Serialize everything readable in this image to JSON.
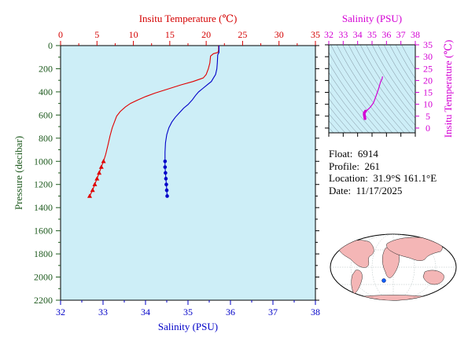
{
  "info": {
    "float_label": "Float:",
    "float_value": "6914",
    "profile_label": "Profile:",
    "profile_value": "261",
    "location_label": "Location:",
    "location_value": "31.9°S  161.1°E",
    "date_label": "Date:",
    "date_value": "11/17/2025"
  },
  "chart_data": [
    {
      "type": "line",
      "title": "",
      "top_axis_title": "Insitu Temperature (℃)",
      "bottom_axis_title": "Salinity (PSU)",
      "left_axis_title": "Pressure (decibar)",
      "temp_range": [
        0,
        35
      ],
      "temp_ticks": [
        "0",
        "5",
        "10",
        "15",
        "20",
        "25",
        "30",
        "35"
      ],
      "sal_range": [
        32,
        38
      ],
      "sal_ticks": [
        "32",
        "33",
        "34",
        "35",
        "36",
        "37",
        "38"
      ],
      "pressure_range": [
        0,
        2200
      ],
      "pressure_ticks": [
        "0",
        "200",
        "400",
        "600",
        "800",
        "1000",
        "1200",
        "1400",
        "1600",
        "1800",
        "2000",
        "2200"
      ],
      "colors": {
        "temperature": "#e00000",
        "salinity": "#0000c8",
        "background": "#cdeef7"
      },
      "series": [
        {
          "name": "Temperature",
          "axis": "temperature",
          "points": [
            [
              21.7,
              0
            ],
            [
              21.7,
              40
            ],
            [
              21.6,
              60
            ],
            [
              21.0,
              70
            ],
            [
              20.6,
              90
            ],
            [
              20.5,
              150
            ],
            [
              20.3,
              200
            ],
            [
              20.0,
              250
            ],
            [
              19.6,
              280
            ],
            [
              18.2,
              310
            ],
            [
              16.5,
              340
            ],
            [
              14.5,
              380
            ],
            [
              13.0,
              410
            ],
            [
              11.7,
              440
            ],
            [
              10.6,
              470
            ],
            [
              9.6,
              500
            ],
            [
              8.9,
              530
            ],
            [
              8.2,
              570
            ],
            [
              7.7,
              610
            ],
            [
              7.4,
              660
            ],
            [
              7.1,
              710
            ],
            [
              6.8,
              780
            ],
            [
              6.5,
              860
            ],
            [
              6.2,
              940
            ],
            [
              5.9,
              1000
            ],
            [
              5.6,
              1050
            ],
            [
              5.3,
              1100
            ],
            [
              5.0,
              1150
            ],
            [
              4.7,
              1200
            ],
            [
              4.4,
              1250
            ],
            [
              4.0,
              1300
            ]
          ],
          "markers": [
            [
              5.9,
              1000
            ],
            [
              5.6,
              1050
            ],
            [
              5.3,
              1100
            ],
            [
              5.0,
              1150
            ],
            [
              4.7,
              1200
            ],
            [
              4.4,
              1250
            ],
            [
              4.0,
              1300
            ]
          ]
        },
        {
          "name": "Salinity",
          "axis": "salinity",
          "points": [
            [
              35.73,
              0
            ],
            [
              35.73,
              60
            ],
            [
              35.7,
              80
            ],
            [
              35.69,
              150
            ],
            [
              35.68,
              200
            ],
            [
              35.65,
              250
            ],
            [
              35.6,
              280
            ],
            [
              35.55,
              310
            ],
            [
              35.45,
              340
            ],
            [
              35.35,
              370
            ],
            [
              35.25,
              400
            ],
            [
              35.18,
              430
            ],
            [
              35.1,
              470
            ],
            [
              35.0,
              510
            ],
            [
              34.9,
              540
            ],
            [
              34.8,
              580
            ],
            [
              34.7,
              620
            ],
            [
              34.62,
              660
            ],
            [
              34.55,
              710
            ],
            [
              34.5,
              770
            ],
            [
              34.47,
              840
            ],
            [
              34.46,
              920
            ],
            [
              34.46,
              1000
            ],
            [
              34.46,
              1050
            ],
            [
              34.47,
              1100
            ],
            [
              34.48,
              1150
            ],
            [
              34.49,
              1200
            ],
            [
              34.5,
              1250
            ],
            [
              34.51,
              1300
            ]
          ],
          "markers": [
            [
              34.46,
              1000
            ],
            [
              34.46,
              1050
            ],
            [
              34.47,
              1100
            ],
            [
              34.48,
              1150
            ],
            [
              34.49,
              1200
            ],
            [
              34.5,
              1250
            ],
            [
              34.51,
              1300
            ]
          ]
        }
      ]
    },
    {
      "type": "scatter",
      "title": "",
      "top_axis_title": "Salinity (PSU)",
      "right_axis_title": "Insitu Temperature (℃)",
      "sal_range": [
        32,
        38
      ],
      "sal_ticks": [
        "32",
        "33",
        "34",
        "35",
        "36",
        "37",
        "38"
      ],
      "temp_range": [
        -2,
        35
      ],
      "temp_ticks": [
        "0",
        "5",
        "10",
        "15",
        "20",
        "25",
        "30",
        "35"
      ],
      "colors": {
        "line": "#d400d4",
        "contours": "#7a8c99",
        "background": "#cdeef7"
      },
      "points": [
        [
          35.73,
          21.7
        ],
        [
          35.69,
          20.5
        ],
        [
          35.6,
          19.6
        ],
        [
          35.45,
          16.5
        ],
        [
          35.25,
          13.0
        ],
        [
          35.1,
          10.6
        ],
        [
          34.9,
          8.9
        ],
        [
          34.7,
          7.7
        ],
        [
          34.55,
          7.1
        ],
        [
          34.47,
          6.5
        ],
        [
          34.46,
          5.9
        ],
        [
          34.47,
          5.3
        ],
        [
          34.49,
          4.7
        ],
        [
          34.51,
          4.0
        ]
      ]
    }
  ]
}
